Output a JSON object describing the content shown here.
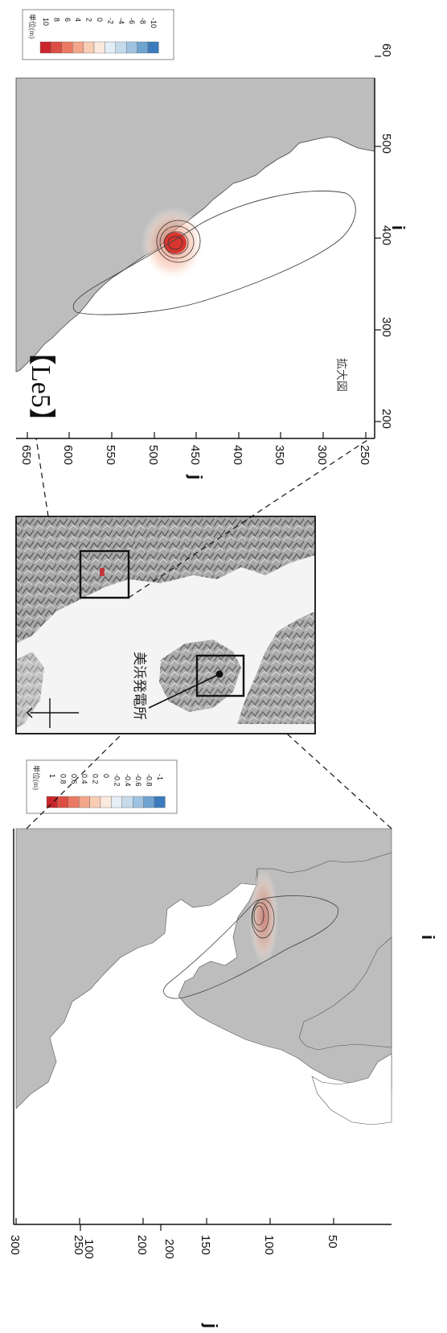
{
  "colorbar_small": {
    "title": "単位(m)",
    "labels": [
      "1",
      "0.8",
      "0.6",
      "0.4",
      "0.2",
      "0",
      "-0.2",
      "-0.4",
      "-0.6",
      "-0.8",
      "-1"
    ],
    "colors": [
      "#c9262b",
      "#dd4e43",
      "#ea7a63",
      "#f3a58a",
      "#f8ccb5",
      "#fbe9de",
      "#e4eef6",
      "#c5dbec",
      "#9fc3e1",
      "#6fa3d0",
      "#3b7bbd"
    ]
  },
  "colorbar_large": {
    "title": "単位(m)",
    "labels": [
      "10",
      "8",
      "6",
      "4",
      "2",
      "0",
      "-2",
      "-4",
      "-6",
      "-8",
      "-10"
    ],
    "colors": [
      "#c9262b",
      "#dd4e43",
      "#ea7a63",
      "#f3a58a",
      "#f8ccb5",
      "#fbe9de",
      "#e4eef6",
      "#c5dbec",
      "#9fc3e1",
      "#6fa3d0",
      "#3b7bbd"
    ]
  },
  "overview_map": {
    "x_axis_label": "i",
    "y_axis_label": "j",
    "x_ticks": [
      "100",
      "200"
    ],
    "y_ticks": [
      "300",
      "250",
      "200",
      "150",
      "100",
      "50"
    ],
    "land_color": "#bdbdbd"
  },
  "inset_map": {
    "site_label": "美浜発電所"
  },
  "zoom_map": {
    "case_label": "【Le5】",
    "zoom_label": "拡大図",
    "x_axis_label": "i",
    "y_axis_label": "j",
    "x_ticks": [
      "200",
      "300",
      "400",
      "500",
      "60"
    ],
    "y_ticks": [
      "650",
      "600",
      "550",
      "500",
      "450",
      "400",
      "350",
      "300",
      "250"
    ],
    "land_color": "#bdbdbd"
  }
}
